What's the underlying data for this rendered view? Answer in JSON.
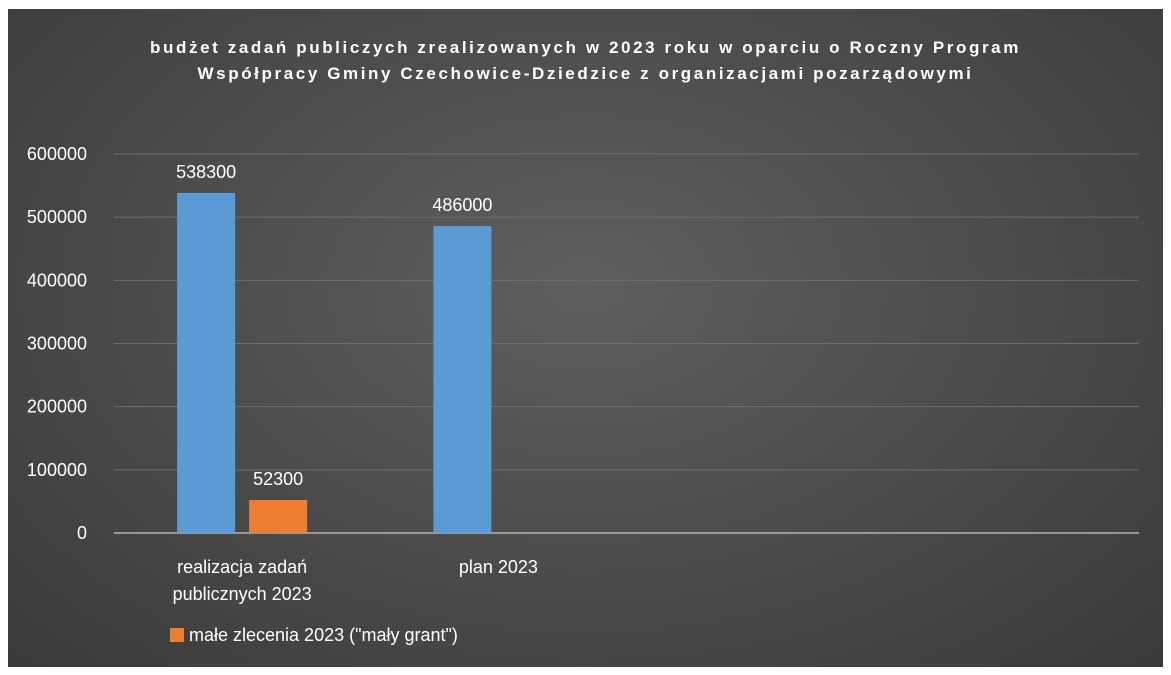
{
  "chart_data": {
    "type": "bar",
    "title": "budżet zadań publiczych zrealizowanych w 2023 roku w oparciu o Roczny Program Współpracy Gminy Czechowice-Dziedzice z organizacjami pozarządowymi",
    "categories": [
      [
        "realizacja zadań",
        "publicznych 2023"
      ],
      [
        "plan 2023"
      ],
      [
        ""
      ],
      [
        ""
      ]
    ],
    "series": [
      {
        "values": [
          538300,
          486000,
          null,
          null
        ],
        "color": "#5b9bd5",
        "show_in_legend": false
      },
      {
        "name": "małe zlecenia 2023 (\"mały grant\")",
        "values": [
          52300,
          null,
          null,
          null
        ],
        "color": "#ed7d31",
        "show_in_legend": true
      }
    ],
    "y_ticks": [
      "0",
      "100000",
      "200000",
      "300000",
      "400000",
      "500000",
      "600000"
    ],
    "ylim": [
      0,
      600000
    ],
    "xlabel": "",
    "ylabel": "",
    "grid": true,
    "legend_position": "bottom-left",
    "background": "#4d4d4d"
  }
}
